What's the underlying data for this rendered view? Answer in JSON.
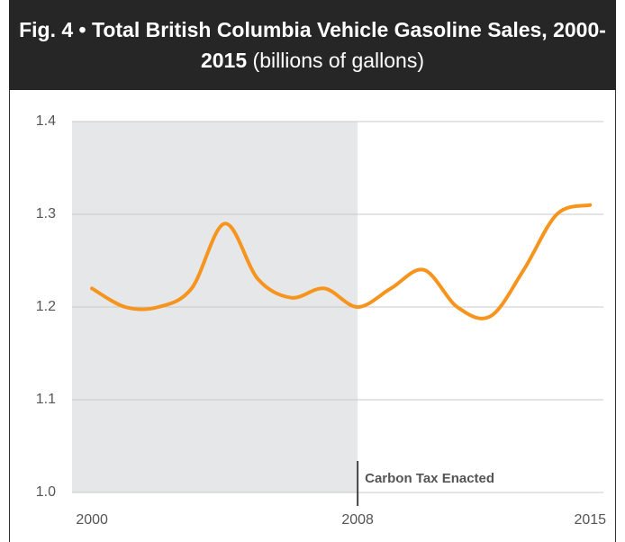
{
  "chart_data": {
    "type": "line",
    "title": "Fig. 4 • Total British Columbia Vehicle Gasoline Sales, 2000-2015",
    "subtitle": "(billions of gallons)",
    "x": [
      2000,
      2001,
      2002,
      2003,
      2004,
      2005,
      2006,
      2007,
      2008,
      2009,
      2010,
      2011,
      2012,
      2013,
      2014,
      2015
    ],
    "values": [
      1.22,
      1.2,
      1.2,
      1.22,
      1.29,
      1.23,
      1.21,
      1.22,
      1.2,
      1.22,
      1.24,
      1.2,
      1.19,
      1.24,
      1.3,
      1.31
    ],
    "color": "#f7941d",
    "xlim": [
      1999.4,
      2015.4
    ],
    "xticks": [
      2000,
      2008,
      2015
    ],
    "ylim": [
      1.0,
      1.4
    ],
    "yticks": [
      {
        "value": 1.0,
        "label": "1.0"
      },
      1.1,
      1.2,
      1.3,
      1.4
    ],
    "grid": true,
    "shade_until": 2008,
    "annotation": {
      "text": "Carbon Tax Enacted",
      "x": 2008
    }
  }
}
